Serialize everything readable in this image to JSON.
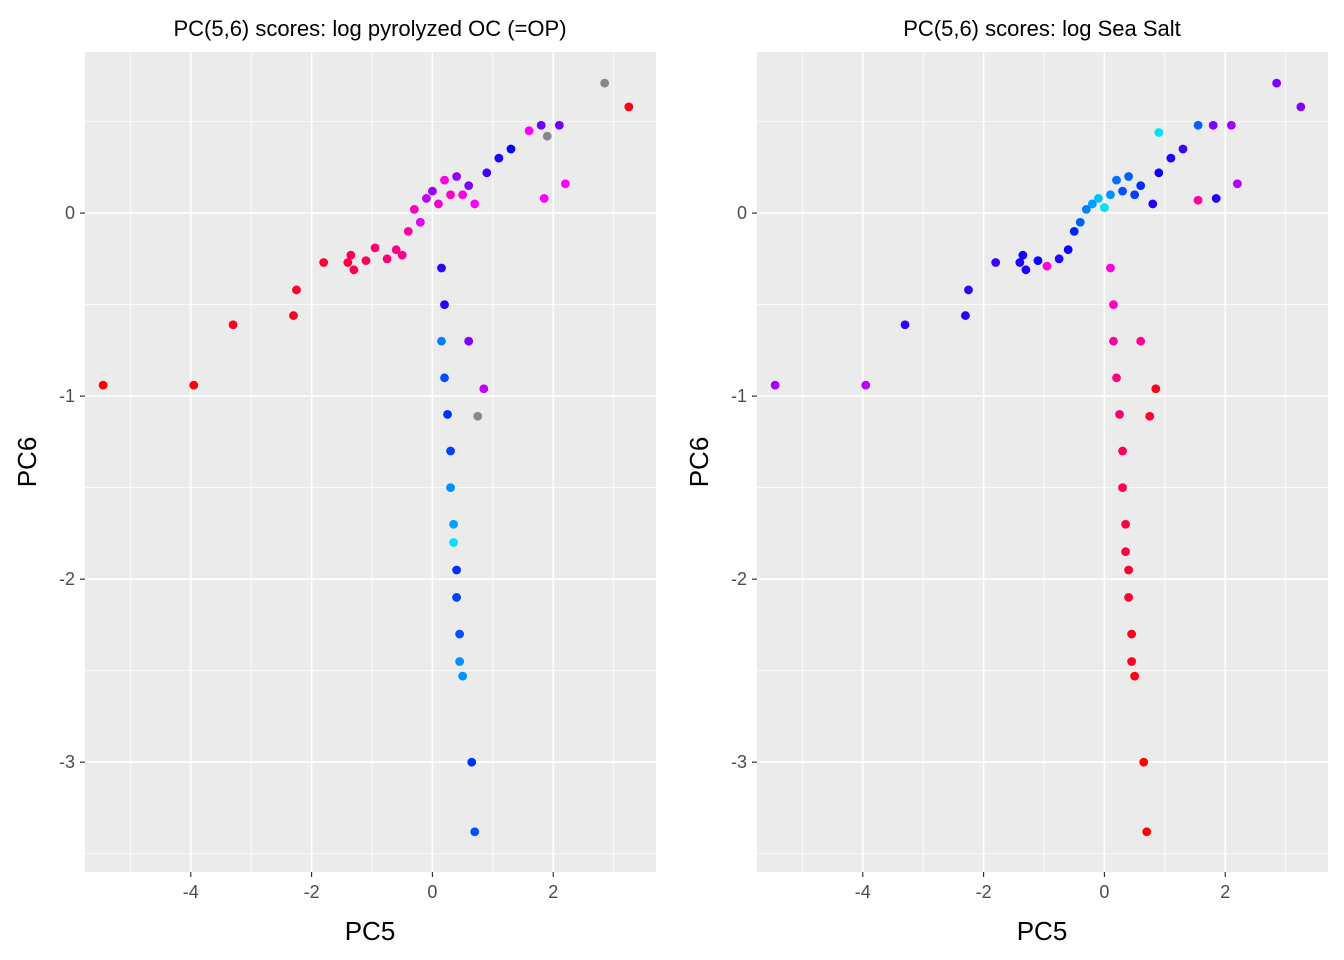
{
  "chart_data": [
    {
      "type": "scatter",
      "title": "PC(5,6) scores: log pyrolyzed OC (=OP)",
      "xlabel": "PC5",
      "ylabel": "PC6",
      "xlim": [
        -5.75,
        3.7
      ],
      "ylim": [
        -3.6,
        0.88
      ],
      "xticks": [
        -4,
        -2,
        0,
        2
      ],
      "yticks": [
        -3,
        -2,
        -1,
        0
      ],
      "grid": true,
      "legend": "none",
      "color_scale": [
        "#ff0000",
        "#ff00ff",
        "#0000ff",
        "#00ffff"
      ],
      "points": [
        {
          "x": -5.45,
          "y": -0.94,
          "color": "#ff0000"
        },
        {
          "x": -3.95,
          "y": -0.94,
          "color": "#ff0010"
        },
        {
          "x": -3.3,
          "y": -0.61,
          "color": "#ff0020"
        },
        {
          "x": -2.3,
          "y": -0.56,
          "color": "#ff0020"
        },
        {
          "x": -2.25,
          "y": -0.42,
          "color": "#ff0030"
        },
        {
          "x": -1.8,
          "y": -0.27,
          "color": "#ff0030"
        },
        {
          "x": -1.4,
          "y": -0.27,
          "color": "#ff0040"
        },
        {
          "x": -1.3,
          "y": -0.31,
          "color": "#ff0050"
        },
        {
          "x": -1.35,
          "y": -0.23,
          "color": "#ff0050"
        },
        {
          "x": -1.1,
          "y": -0.26,
          "color": "#ff0060"
        },
        {
          "x": -0.95,
          "y": -0.19,
          "color": "#ff0070"
        },
        {
          "x": -0.75,
          "y": -0.25,
          "color": "#ff0070"
        },
        {
          "x": -0.6,
          "y": -0.2,
          "color": "#ff0080"
        },
        {
          "x": -0.5,
          "y": -0.23,
          "color": "#ff0090"
        },
        {
          "x": -0.4,
          "y": -0.1,
          "color": "#ff00a0"
        },
        {
          "x": -0.3,
          "y": 0.02,
          "color": "#ff00c0"
        },
        {
          "x": -0.2,
          "y": -0.05,
          "color": "#e000ff"
        },
        {
          "x": -0.1,
          "y": 0.08,
          "color": "#c000ff"
        },
        {
          "x": 0.0,
          "y": 0.12,
          "color": "#a000ff"
        },
        {
          "x": 0.1,
          "y": 0.05,
          "color": "#ff00d0"
        },
        {
          "x": 0.2,
          "y": 0.18,
          "color": "#ff00e0"
        },
        {
          "x": 0.3,
          "y": 0.1,
          "color": "#ff00c0"
        },
        {
          "x": 0.4,
          "y": 0.2,
          "color": "#9000ff"
        },
        {
          "x": 0.5,
          "y": 0.1,
          "color": "#ff00e0"
        },
        {
          "x": 0.6,
          "y": 0.15,
          "color": "#8000ff"
        },
        {
          "x": 0.7,
          "y": 0.05,
          "color": "#ff00ff"
        },
        {
          "x": 0.9,
          "y": 0.22,
          "color": "#4000ff"
        },
        {
          "x": 1.1,
          "y": 0.3,
          "color": "#2000ff"
        },
        {
          "x": 1.3,
          "y": 0.35,
          "color": "#0000ff"
        },
        {
          "x": 1.6,
          "y": 0.45,
          "color": "#ff00ff"
        },
        {
          "x": 1.8,
          "y": 0.48,
          "color": "#7000ff"
        },
        {
          "x": 2.1,
          "y": 0.48,
          "color": "#7000ff"
        },
        {
          "x": 1.9,
          "y": 0.42,
          "color": "#888888"
        },
        {
          "x": 2.85,
          "y": 0.71,
          "color": "#888888"
        },
        {
          "x": 3.25,
          "y": 0.58,
          "color": "#ff0010"
        },
        {
          "x": 1.85,
          "y": 0.08,
          "color": "#ff00ff"
        },
        {
          "x": 2.2,
          "y": 0.16,
          "color": "#ff00ff"
        },
        {
          "x": 0.15,
          "y": -0.3,
          "color": "#3000ff"
        },
        {
          "x": 0.2,
          "y": -0.5,
          "color": "#2000ff"
        },
        {
          "x": 0.15,
          "y": -0.7,
          "color": "#0080ff"
        },
        {
          "x": 0.2,
          "y": -0.9,
          "color": "#0050ff"
        },
        {
          "x": 0.25,
          "y": -1.1,
          "color": "#0030ff"
        },
        {
          "x": 0.3,
          "y": -1.3,
          "color": "#0040ff"
        },
        {
          "x": 0.3,
          "y": -1.5,
          "color": "#0090ff"
        },
        {
          "x": 0.35,
          "y": -1.7,
          "color": "#00a0ff"
        },
        {
          "x": 0.35,
          "y": -1.8,
          "color": "#00e0ff"
        },
        {
          "x": 0.4,
          "y": -1.95,
          "color": "#0030ff"
        },
        {
          "x": 0.4,
          "y": -2.1,
          "color": "#0040ff"
        },
        {
          "x": 0.45,
          "y": -2.3,
          "color": "#0050ff"
        },
        {
          "x": 0.45,
          "y": -2.45,
          "color": "#0090ff"
        },
        {
          "x": 0.5,
          "y": -2.53,
          "color": "#0090ff"
        },
        {
          "x": 0.65,
          "y": -3.0,
          "color": "#0030ff"
        },
        {
          "x": 0.7,
          "y": -3.38,
          "color": "#0050ff"
        },
        {
          "x": 0.85,
          "y": -0.96,
          "color": "#c000ff"
        },
        {
          "x": 0.75,
          "y": -1.11,
          "color": "#888888"
        },
        {
          "x": 0.6,
          "y": -0.7,
          "color": "#8000ff"
        }
      ]
    },
    {
      "type": "scatter",
      "title": "PC(5,6) scores: log Sea Salt",
      "xlabel": "PC5",
      "ylabel": "PC6",
      "xlim": [
        -5.75,
        3.7
      ],
      "ylim": [
        -3.6,
        0.88
      ],
      "xticks": [
        -4,
        -2,
        0,
        2
      ],
      "yticks": [
        -3,
        -2,
        -1,
        0
      ],
      "grid": true,
      "legend": "none",
      "color_scale": [
        "#ff0000",
        "#ff00ff",
        "#0000ff",
        "#00ffff"
      ],
      "points": [
        {
          "x": -5.45,
          "y": -0.94,
          "color": "#a000ff"
        },
        {
          "x": -3.95,
          "y": -0.94,
          "color": "#c000ff"
        },
        {
          "x": -3.3,
          "y": -0.61,
          "color": "#3000ff"
        },
        {
          "x": -2.3,
          "y": -0.56,
          "color": "#3000ff"
        },
        {
          "x": -2.25,
          "y": -0.42,
          "color": "#3000ff"
        },
        {
          "x": -1.8,
          "y": -0.27,
          "color": "#4000ff"
        },
        {
          "x": -1.4,
          "y": -0.27,
          "color": "#2000ff"
        },
        {
          "x": -1.3,
          "y": -0.31,
          "color": "#2000ff"
        },
        {
          "x": -1.35,
          "y": -0.23,
          "color": "#1000ff"
        },
        {
          "x": -1.1,
          "y": -0.26,
          "color": "#1000ff"
        },
        {
          "x": -0.95,
          "y": -0.29,
          "color": "#ff00d0"
        },
        {
          "x": -0.75,
          "y": -0.25,
          "color": "#2000ff"
        },
        {
          "x": -0.6,
          "y": -0.2,
          "color": "#1000ff"
        },
        {
          "x": -0.5,
          "y": -0.1,
          "color": "#0020ff"
        },
        {
          "x": -0.4,
          "y": -0.05,
          "color": "#0060ff"
        },
        {
          "x": -0.3,
          "y": 0.02,
          "color": "#0080ff"
        },
        {
          "x": -0.2,
          "y": 0.05,
          "color": "#00a0ff"
        },
        {
          "x": -0.1,
          "y": 0.08,
          "color": "#00c0ff"
        },
        {
          "x": 0.0,
          "y": 0.03,
          "color": "#00e0ff"
        },
        {
          "x": 0.1,
          "y": 0.1,
          "color": "#0090ff"
        },
        {
          "x": 0.2,
          "y": 0.18,
          "color": "#0070ff"
        },
        {
          "x": 0.3,
          "y": 0.12,
          "color": "#0050ff"
        },
        {
          "x": 0.4,
          "y": 0.2,
          "color": "#0060ff"
        },
        {
          "x": 0.5,
          "y": 0.1,
          "color": "#0040ff"
        },
        {
          "x": 0.6,
          "y": 0.15,
          "color": "#0030ff"
        },
        {
          "x": 0.8,
          "y": 0.05,
          "color": "#2000ff"
        },
        {
          "x": 0.9,
          "y": 0.22,
          "color": "#1000ff"
        },
        {
          "x": 0.9,
          "y": 0.44,
          "color": "#00e0ff"
        },
        {
          "x": 1.1,
          "y": 0.3,
          "color": "#2000ff"
        },
        {
          "x": 1.3,
          "y": 0.35,
          "color": "#4000ff"
        },
        {
          "x": 1.55,
          "y": 0.48,
          "color": "#0060ff"
        },
        {
          "x": 1.8,
          "y": 0.48,
          "color": "#8000ff"
        },
        {
          "x": 2.1,
          "y": 0.48,
          "color": "#a000ff"
        },
        {
          "x": 1.55,
          "y": 0.07,
          "color": "#ff00a0"
        },
        {
          "x": 1.85,
          "y": 0.08,
          "color": "#2000ff"
        },
        {
          "x": 2.2,
          "y": 0.16,
          "color": "#b000ff"
        },
        {
          "x": 2.85,
          "y": 0.71,
          "color": "#8000ff"
        },
        {
          "x": 3.25,
          "y": 0.58,
          "color": "#8000ff"
        },
        {
          "x": 0.1,
          "y": -0.3,
          "color": "#ff00e0"
        },
        {
          "x": 0.15,
          "y": -0.5,
          "color": "#ff00c0"
        },
        {
          "x": 0.15,
          "y": -0.7,
          "color": "#ff00a0"
        },
        {
          "x": 0.2,
          "y": -0.9,
          "color": "#ff0080"
        },
        {
          "x": 0.25,
          "y": -1.1,
          "color": "#ff0070"
        },
        {
          "x": 0.3,
          "y": -1.3,
          "color": "#ff0060"
        },
        {
          "x": 0.3,
          "y": -1.5,
          "color": "#ff0050"
        },
        {
          "x": 0.35,
          "y": -1.7,
          "color": "#ff0040"
        },
        {
          "x": 0.35,
          "y": -1.85,
          "color": "#ff0040"
        },
        {
          "x": 0.4,
          "y": -1.95,
          "color": "#ff0030"
        },
        {
          "x": 0.4,
          "y": -2.1,
          "color": "#ff0030"
        },
        {
          "x": 0.45,
          "y": -2.3,
          "color": "#ff0020"
        },
        {
          "x": 0.45,
          "y": -2.45,
          "color": "#ff0020"
        },
        {
          "x": 0.5,
          "y": -2.53,
          "color": "#ff0010"
        },
        {
          "x": 0.65,
          "y": -3.0,
          "color": "#ff0000"
        },
        {
          "x": 0.7,
          "y": -3.38,
          "color": "#ff0000"
        },
        {
          "x": 0.85,
          "y": -0.96,
          "color": "#ff0020"
        },
        {
          "x": 0.75,
          "y": -1.11,
          "color": "#ff0030"
        },
        {
          "x": 0.6,
          "y": -0.7,
          "color": "#ff0090"
        }
      ]
    }
  ]
}
